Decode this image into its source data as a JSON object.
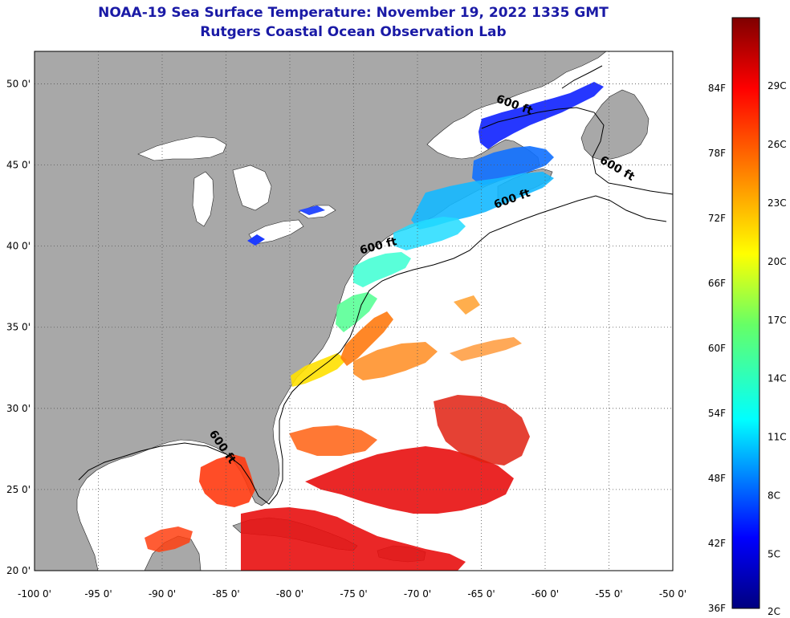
{
  "header": {
    "title": "NOAA-19 Sea Surface Temperature:  November 19, 2022 1335 GMT",
    "subtitle": "Rutgers Coastal Ocean Observation Lab"
  },
  "map": {
    "lon_range": [
      -100,
      -50
    ],
    "lat_range": [
      20,
      52
    ],
    "lon_ticks": [
      {
        "value": -100,
        "label": "-100 0'"
      },
      {
        "value": -95,
        "label": "-95 0'"
      },
      {
        "value": -90,
        "label": "-90 0'"
      },
      {
        "value": -85,
        "label": "-85 0'"
      },
      {
        "value": -80,
        "label": "-80 0'"
      },
      {
        "value": -75,
        "label": "-75 0'"
      },
      {
        "value": -70,
        "label": "-70 0'"
      },
      {
        "value": -65,
        "label": "-65 0'"
      },
      {
        "value": -60,
        "label": "-60 0'"
      },
      {
        "value": -55,
        "label": "-55 0'"
      },
      {
        "value": -50,
        "label": "-50 0'"
      }
    ],
    "lat_ticks": [
      {
        "value": 50,
        "label": "50 0'"
      },
      {
        "value": 45,
        "label": "45 0'"
      },
      {
        "value": 40,
        "label": "40 0'"
      },
      {
        "value": 35,
        "label": "35 0'"
      },
      {
        "value": 30,
        "label": "30 0'"
      },
      {
        "value": 25,
        "label": "25 0'"
      },
      {
        "value": 20,
        "label": "20 0'"
      }
    ],
    "contour_labels": [
      {
        "text": "600 ft",
        "lon": -62.5,
        "lat": 48.5,
        "rotate": 20
      },
      {
        "text": "600 ft",
        "lon": -54.5,
        "lat": 44.6,
        "rotate": 30
      },
      {
        "text": "600 ft",
        "lon": -62.5,
        "lat": 42.7,
        "rotate": -20
      },
      {
        "text": "600 ft",
        "lon": -73.0,
        "lat": 39.8,
        "rotate": -15
      },
      {
        "text": "600 ft",
        "lon": -85.5,
        "lat": 27.5,
        "rotate": 55
      }
    ],
    "colors": {
      "land": "#a8a8a8",
      "ocean_nodata": "#ffffff"
    }
  },
  "colorbar": {
    "f_labels": [
      {
        "value": 84,
        "label": "84F"
      },
      {
        "value": 78,
        "label": "78F"
      },
      {
        "value": 72,
        "label": "72F"
      },
      {
        "value": 66,
        "label": "66F"
      },
      {
        "value": 60,
        "label": "60F"
      },
      {
        "value": 54,
        "label": "54F"
      },
      {
        "value": 48,
        "label": "48F"
      },
      {
        "value": 42,
        "label": "42F"
      },
      {
        "value": 36,
        "label": "36F"
      }
    ],
    "c_labels": [
      {
        "value": 29,
        "label": "29C"
      },
      {
        "value": 26,
        "label": "26C"
      },
      {
        "value": 23,
        "label": "23C"
      },
      {
        "value": 20,
        "label": "20C"
      },
      {
        "value": 17,
        "label": "17C"
      },
      {
        "value": 14,
        "label": "14C"
      },
      {
        "value": 11,
        "label": "11C"
      },
      {
        "value": 8,
        "label": "8C"
      },
      {
        "value": 5,
        "label": "5C"
      },
      {
        "value": 2,
        "label": "2C"
      }
    ]
  }
}
